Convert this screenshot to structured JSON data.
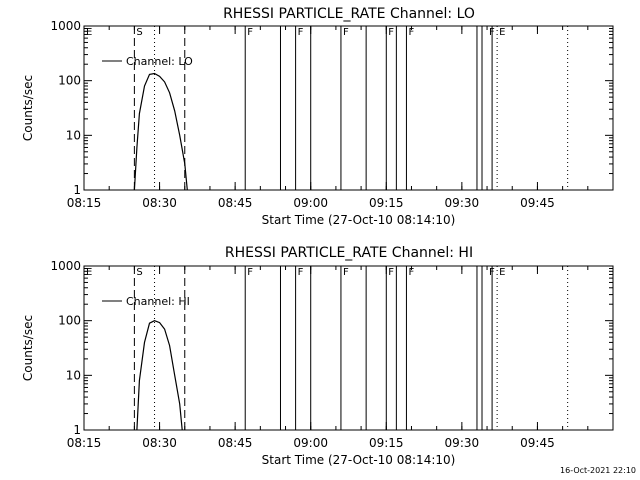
{
  "footer": "16-Oct-2021 22:10",
  "chart_data": [
    {
      "type": "line",
      "title": "RHESSI PARTICLE_RATE Channel: LO",
      "xlabel": "Start Time (27-Oct-10 08:14:10)",
      "ylabel": "Counts/sec",
      "yscale": "log",
      "ylim": [
        1,
        1000
      ],
      "xlim": [
        "08:15",
        "10:00"
      ],
      "xticks": [
        "08:15",
        "08:30",
        "08:45",
        "09:00",
        "09:15",
        "09:30",
        "09:45"
      ],
      "yticks": [
        "1",
        "10",
        "100",
        "1000"
      ],
      "legend": {
        "location": "top-left",
        "entries": [
          "Channel: LO"
        ]
      },
      "series": [
        {
          "name": "Channel: LO",
          "x": [
            "08:25",
            "08:25:30",
            "08:26",
            "08:27",
            "08:28",
            "08:29",
            "08:30",
            "08:31",
            "08:32",
            "08:33",
            "08:34",
            "08:35",
            "08:35:30"
          ],
          "y": [
            1,
            6,
            25,
            80,
            130,
            135,
            120,
            95,
            60,
            28,
            10,
            3,
            1
          ]
        }
      ],
      "dashed_markers": [
        "08:25",
        "08:35"
      ],
      "dotted_markers": [
        "08:29",
        "09:37",
        "09:51"
      ],
      "solid_markers": [
        "08:47",
        "08:54",
        "08:57",
        "09:00",
        "09:06",
        "09:11",
        "09:15",
        "09:17",
        "09:19",
        "09:33",
        "09:34",
        "09:36"
      ],
      "event_labels": [
        {
          "text": "E",
          "x": "08:15"
        },
        {
          "text": "S",
          "x": "08:25"
        },
        {
          "text": "F",
          "x": "08:47"
        },
        {
          "text": "F",
          "x": "08:57"
        },
        {
          "text": "F",
          "x": "09:06"
        },
        {
          "text": "F",
          "x": "09:15"
        },
        {
          "text": "F",
          "x": "09:19"
        },
        {
          "text": "F",
          "x": "09:35"
        },
        {
          "text": "E",
          "x": "09:37"
        }
      ]
    },
    {
      "type": "line",
      "title": "RHESSI PARTICLE_RATE Channel: HI",
      "xlabel": "Start Time (27-Oct-10 08:14:10)",
      "ylabel": "Counts/sec",
      "yscale": "log",
      "ylim": [
        1,
        1000
      ],
      "xlim": [
        "08:15",
        "10:00"
      ],
      "xticks": [
        "08:15",
        "08:30",
        "08:45",
        "09:00",
        "09:15",
        "09:30",
        "09:45"
      ],
      "yticks": [
        "1",
        "10",
        "100",
        "1000"
      ],
      "legend": {
        "location": "top-left",
        "entries": [
          "Channel: HI"
        ]
      },
      "series": [
        {
          "name": "Channel: HI",
          "x": [
            "08:25:30",
            "08:26",
            "08:27",
            "08:28",
            "08:29",
            "08:30",
            "08:31",
            "08:32",
            "08:33",
            "08:34",
            "08:34:30"
          ],
          "y": [
            1,
            8,
            40,
            90,
            100,
            92,
            70,
            35,
            10,
            3,
            1
          ]
        }
      ],
      "dashed_markers": [
        "08:25",
        "08:35"
      ],
      "dotted_markers": [
        "08:29",
        "09:37",
        "09:51"
      ],
      "solid_markers": [
        "08:47",
        "08:54",
        "08:57",
        "09:00",
        "09:06",
        "09:11",
        "09:15",
        "09:17",
        "09:19",
        "09:33",
        "09:34",
        "09:36"
      ],
      "event_labels": [
        {
          "text": "E",
          "x": "08:15"
        },
        {
          "text": "S",
          "x": "08:25"
        },
        {
          "text": "F",
          "x": "08:47"
        },
        {
          "text": "F",
          "x": "08:57"
        },
        {
          "text": "F",
          "x": "09:06"
        },
        {
          "text": "F",
          "x": "09:15"
        },
        {
          "text": "F",
          "x": "09:19"
        },
        {
          "text": "F",
          "x": "09:35"
        },
        {
          "text": "E",
          "x": "09:37"
        }
      ]
    }
  ]
}
